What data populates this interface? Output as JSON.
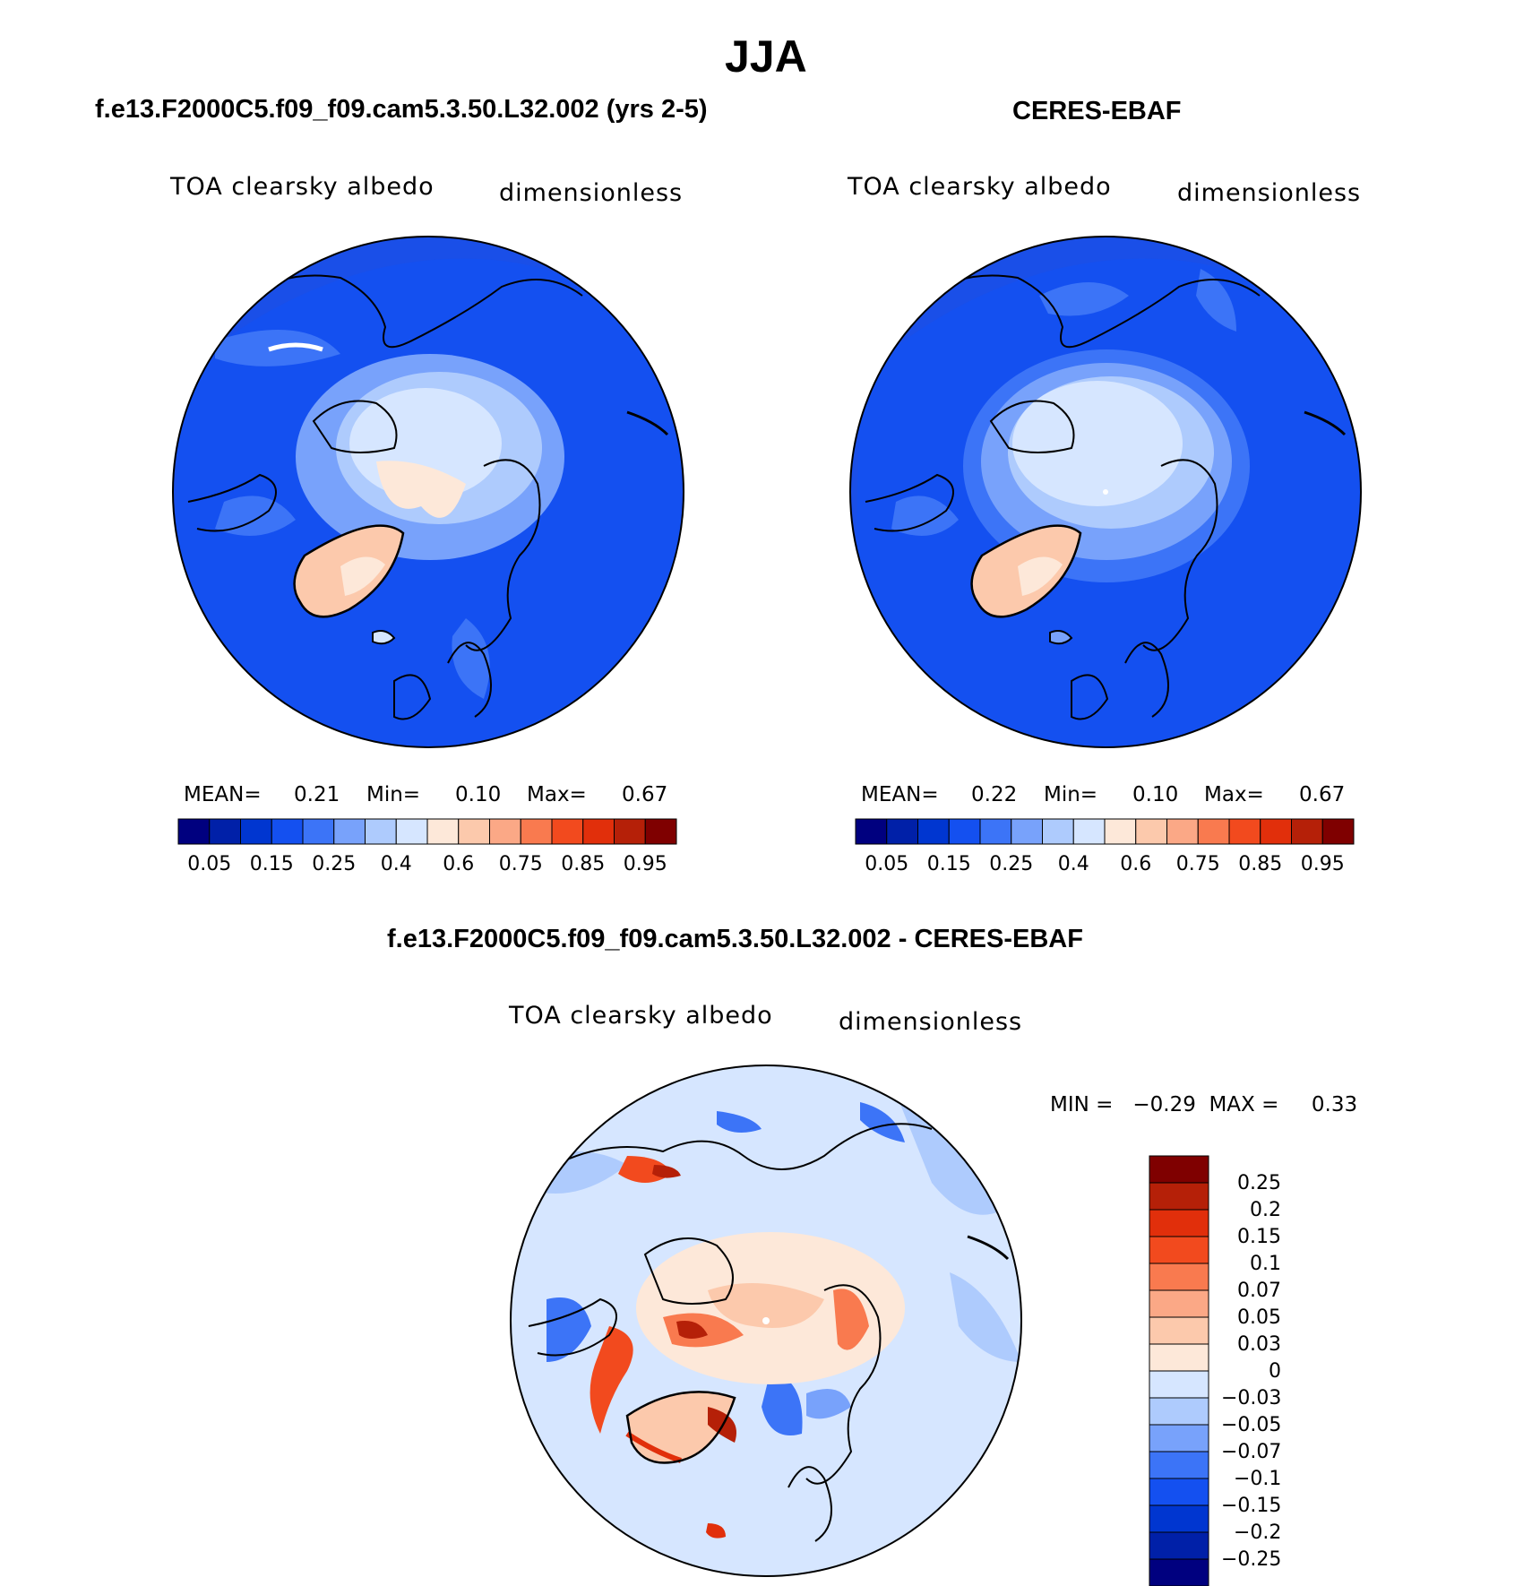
{
  "figure": {
    "title": "JJA"
  },
  "panels": [
    {
      "title": "f.e13.F2000C5.f09_f09.cam5.3.50.L32.002 (yrs 2-5)",
      "variable": "TOA clearsky albedo",
      "units": "dimensionless",
      "stats": {
        "mean_label": "MEAN=",
        "mean": "0.21",
        "min_label": "Min=",
        "min": "0.10",
        "max_label": "Max=",
        "max": "0.67"
      }
    },
    {
      "title": "CERES-EBAF",
      "variable": "TOA clearsky albedo",
      "units": "dimensionless",
      "stats": {
        "mean_label": "MEAN=",
        "mean": "0.22",
        "min_label": "Min=",
        "min": "0.10",
        "max_label": "Max=",
        "max": "0.67"
      }
    }
  ],
  "diff_panel": {
    "title": "f.e13.F2000C5.f09_f09.cam5.3.50.L32.002 - CERES-EBAF",
    "variable": "TOA clearsky albedo",
    "units": "dimensionless",
    "minmax_text": "MIN =   −0.29  MAX =     0.33"
  },
  "colorbar_abs": {
    "colors": [
      "#00007f",
      "#0020a8",
      "#0036d0",
      "#1450f0",
      "#3c74f7",
      "#78a2fb",
      "#aecbfd",
      "#d6e6ff",
      "#fde8d9",
      "#fcc9ac",
      "#fba886",
      "#f97a4f",
      "#f24a1e",
      "#e12f0b",
      "#b52008",
      "#7f0000"
    ],
    "labels": [
      "0.05",
      "0.15",
      "0.25",
      "0.4",
      "0.6",
      "0.75",
      "0.85",
      "0.95"
    ]
  },
  "colorbar_diff": {
    "colors": [
      "#7f0000",
      "#b52008",
      "#e12f0b",
      "#f24a1e",
      "#f97a4f",
      "#fba886",
      "#fcc9ac",
      "#fde8d9",
      "#d6e6ff",
      "#aecbfd",
      "#78a2fb",
      "#3c74f7",
      "#1450f0",
      "#0036d0",
      "#0020a8",
      "#00007f"
    ],
    "labels": [
      "0.25",
      "0.2",
      "0.15",
      "0.1",
      "0.07",
      "0.05",
      "0.03",
      "0",
      "−0.03",
      "−0.05",
      "−0.07",
      "−0.1",
      "−0.15",
      "−0.2",
      "−0.25"
    ]
  }
}
